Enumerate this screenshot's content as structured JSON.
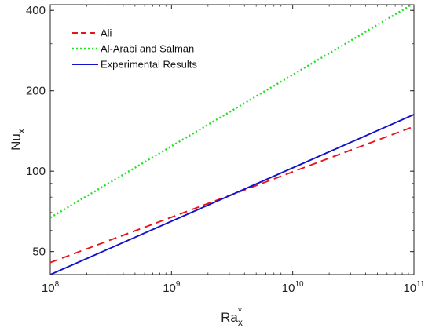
{
  "chart_data": {
    "type": "line",
    "title": "",
    "xlabel": "Ra",
    "xlabel_sub": "x",
    "xlabel_sup": "*",
    "ylabel": "Nu",
    "ylabel_sub": "x",
    "x_scale": "log",
    "y_scale": "log",
    "xlim": [
      100000000,
      100000000000
    ],
    "ylim": [
      41,
      420
    ],
    "x_ticks": [
      {
        "value": 100000000,
        "base": "10",
        "exp": "8"
      },
      {
        "value": 1000000000,
        "base": "10",
        "exp": "9"
      },
      {
        "value": 10000000000,
        "base": "10",
        "exp": "10"
      },
      {
        "value": 100000000000,
        "base": "10",
        "exp": "11"
      }
    ],
    "y_ticks": [
      {
        "value": 50,
        "label": "50"
      },
      {
        "value": 100,
        "label": "100"
      },
      {
        "value": 200,
        "label": "200"
      },
      {
        "value": 400,
        "label": "400"
      }
    ],
    "grid": false,
    "legend_position": "top-left",
    "series": [
      {
        "name": "Ali",
        "color": "#e8141c",
        "style": "dashed",
        "x": [
          100000000,
          100000000000
        ],
        "y": [
          45.5,
          147
        ]
      },
      {
        "name": "Al-Arabi and Salman",
        "color": "#19e619",
        "style": "dotted",
        "x": [
          100000000,
          100000000000
        ],
        "y": [
          67,
          425
        ]
      },
      {
        "name": "Experimental Results",
        "color": "#1212cc",
        "style": "solid",
        "x": [
          100000000,
          100000000000
        ],
        "y": [
          41,
          163
        ]
      }
    ]
  }
}
